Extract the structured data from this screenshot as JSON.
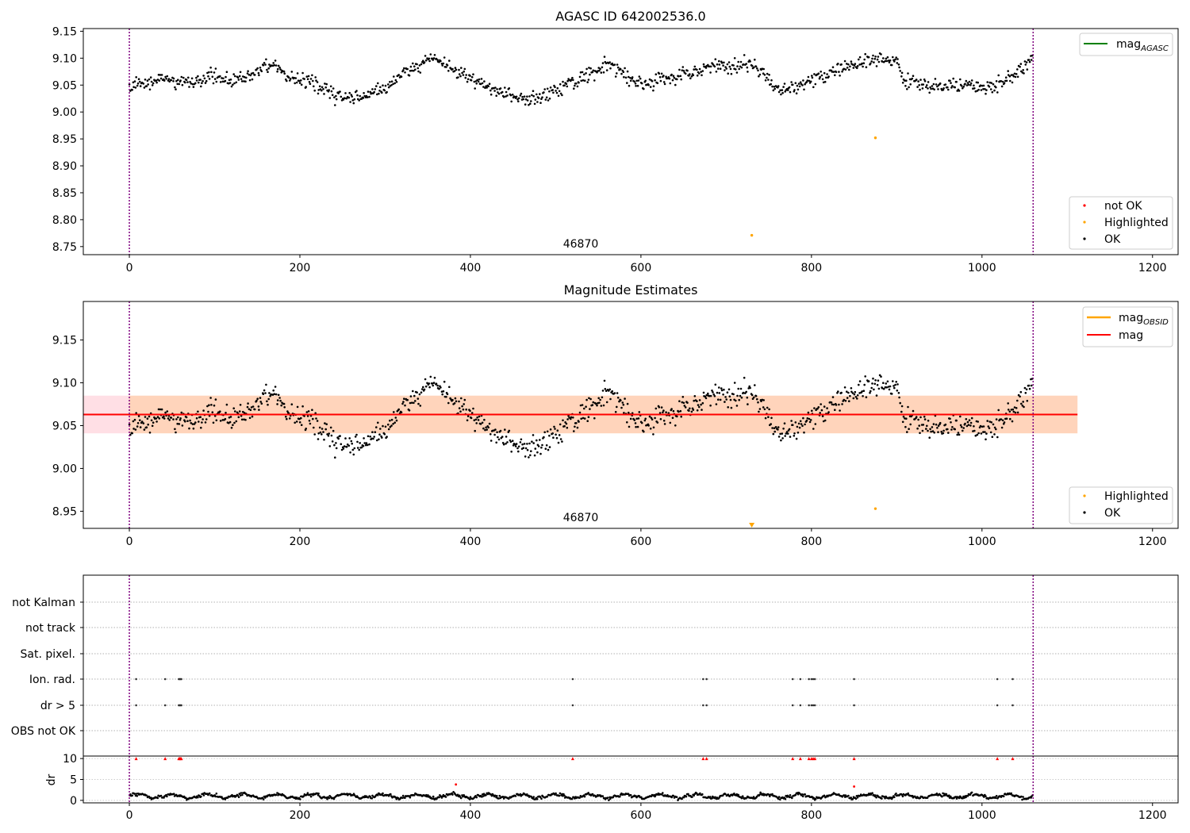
{
  "chart_data": [
    {
      "type": "scatter",
      "title": "AGASC ID 642002536.0",
      "xlabel": "",
      "ylabel": "",
      "xlim": [
        -54,
        1230
      ],
      "ylim": [
        8.735,
        9.155
      ],
      "x_ticks": [
        "0",
        "200",
        "400",
        "600",
        "800",
        "1000",
        "1200"
      ],
      "y_ticks": [
        "8.75",
        "8.80",
        "8.85",
        "8.90",
        "8.95",
        "9.00",
        "9.05",
        "9.10",
        "9.15"
      ],
      "obsid_label": "46870",
      "obsid_label_x": 530,
      "vlines_x": [
        0,
        1060
      ],
      "series": [
        {
          "name": "mag_AGASC",
          "type": "line",
          "color": "#008000",
          "values": []
        },
        {
          "name": "not OK",
          "color": "#ff0000",
          "points": []
        },
        {
          "name": "Highlighted",
          "color": "#ffa500",
          "points": [
            [
              875,
              8.952
            ],
            [
              730,
              8.771
            ]
          ]
        },
        {
          "name": "OK",
          "color": "#000000",
          "x_range": [
            0,
            1060
          ],
          "y_mean": 9.062
        }
      ],
      "legend": {
        "upper": {
          "placement": "top-right",
          "entries": [
            {
              "label": "mag",
              "sub": "AGASC",
              "color": "#008000",
              "kind": "line"
            }
          ]
        },
        "lower": {
          "placement": "bottom-right",
          "entries": [
            {
              "label": "not OK",
              "color": "#ff0000",
              "kind": "point"
            },
            {
              "label": "Highlighted",
              "color": "#ffa500",
              "kind": "point"
            },
            {
              "label": "OK",
              "color": "#000000",
              "kind": "point"
            }
          ]
        }
      }
    },
    {
      "type": "scatter",
      "title": "Magnitude Estimates",
      "xlabel": "",
      "ylabel": "",
      "xlim": [
        -54,
        1230
      ],
      "ylim": [
        8.93,
        9.195
      ],
      "x_ticks": [
        "0",
        "200",
        "400",
        "600",
        "800",
        "1000",
        "1200"
      ],
      "y_ticks": [
        "8.95",
        "9.00",
        "9.05",
        "9.10",
        "9.15"
      ],
      "obsid_label": "46870",
      "obsid_label_x": 530,
      "vlines_x": [
        0,
        1060
      ],
      "mag_line": 9.063,
      "band_outer": [
        9.041,
        9.085
      ],
      "band_inner": [
        9.041,
        9.085
      ],
      "band_x": [
        -54,
        1112
      ],
      "series": [
        {
          "name": "mag_OBSID",
          "type": "line",
          "color": "#ffa500",
          "values": []
        },
        {
          "name": "mag",
          "type": "line",
          "color": "#ff0000",
          "value": 9.063
        },
        {
          "name": "Highlighted",
          "color": "#ffa500",
          "points": [
            [
              875,
              8.953
            ]
          ],
          "out_of_range_marker_x": 730
        },
        {
          "name": "OK",
          "color": "#000000",
          "x_range": [
            0,
            1060
          ],
          "y_mean": 9.062
        }
      ],
      "legend": {
        "upper": {
          "placement": "top-right",
          "entries": [
            {
              "label": "mag",
              "sub": "OBSID",
              "color": "#ffa500",
              "kind": "line"
            },
            {
              "label": "mag",
              "sub": "",
              "color": "#ff0000",
              "kind": "line"
            }
          ]
        },
        "lower": {
          "placement": "bottom-right",
          "entries": [
            {
              "label": "Highlighted",
              "color": "#ffa500",
              "kind": "point"
            },
            {
              "label": "OK",
              "color": "#000000",
              "kind": "point"
            }
          ]
        }
      }
    },
    {
      "type": "scatter",
      "title": "",
      "xlim": [
        -54,
        1230
      ],
      "x_ticks": [
        "0",
        "200",
        "400",
        "600",
        "800",
        "1000",
        "1200"
      ],
      "vlines_x": [
        0,
        1060
      ],
      "flag_rows": [
        "not Kalman",
        "not track",
        "Sat. pixel.",
        "Ion. rad.",
        "dr > 5",
        "OBS not OK"
      ],
      "flag_points": {
        "Ion. rad.": [
          8,
          42,
          58,
          59,
          60,
          61,
          520,
          673,
          677,
          778,
          787,
          797,
          800,
          802,
          804,
          850,
          1018,
          1036
        ],
        "dr > 5": [
          8,
          42,
          58,
          59,
          60,
          61,
          520,
          673,
          677,
          778,
          787,
          797,
          800,
          802,
          804,
          850,
          1018,
          1036
        ]
      },
      "dr": {
        "ylabel": "dr",
        "ylim": [
          -0.6,
          10.6
        ],
        "y_ticks": [
          "0",
          "5",
          "10"
        ],
        "y_tick_values": [
          0,
          5,
          10
        ],
        "mean": 1.2,
        "clipped_at_10_x": [
          8,
          42,
          58,
          59,
          60,
          61,
          520,
          673,
          677,
          778,
          787,
          797,
          800,
          802,
          804,
          850,
          1018,
          1036
        ],
        "outliers": [
          [
            383,
            3.8
          ],
          [
            850,
            3.3
          ]
        ]
      }
    }
  ]
}
